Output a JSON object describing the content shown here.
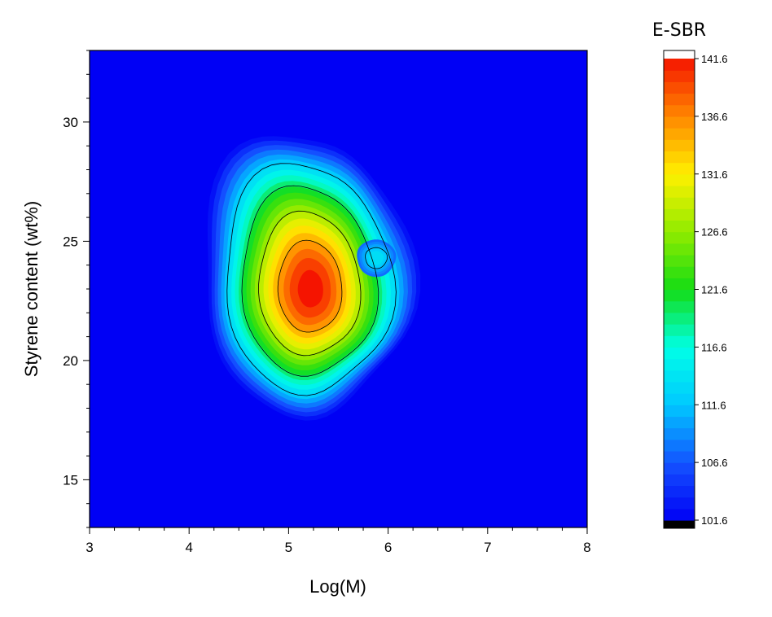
{
  "chart_data": {
    "type": "heatmap",
    "xlabel": "Log(M)",
    "ylabel": "Styrene content (wt%)",
    "xlim": [
      3,
      8
    ],
    "ylim": [
      13,
      33
    ],
    "x_ticks": [
      3,
      4,
      5,
      6,
      7,
      8
    ],
    "y_ticks": [
      15,
      20,
      25,
      30
    ],
    "colorbar": {
      "title": "E-SBR",
      "range": [
        101.6,
        141.6
      ],
      "tick_values": [
        101.6,
        106.6,
        111.6,
        116.6,
        121.6,
        126.6,
        131.6,
        136.6,
        141.6
      ],
      "tick_labels": [
        "101.6",
        "106.6",
        "111.6",
        "116.6",
        "121.6",
        "126.6",
        "131.6",
        "136.6",
        "141.6"
      ],
      "under_color": "#000000",
      "over_color": "#ffffff"
    },
    "background_value": 101.6,
    "peaks": [
      {
        "x": 5.22,
        "y": 23.0,
        "value": 141.6,
        "spread_x": 0.38,
        "spread_y": 2.3
      },
      {
        "x": 5.88,
        "y": 24.3,
        "value": 113.5,
        "spread_x": 0.12,
        "spread_y": 0.5
      }
    ],
    "grid": false
  }
}
